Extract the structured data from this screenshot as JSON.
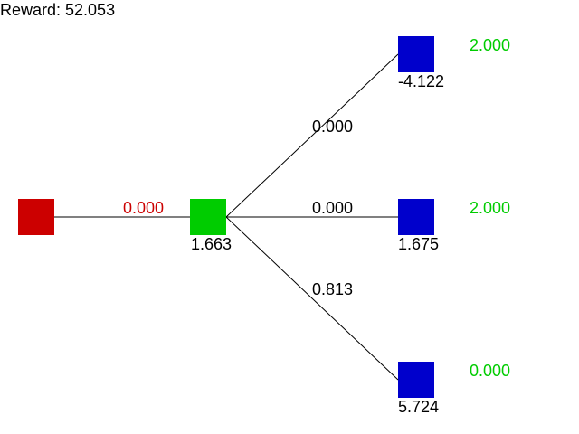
{
  "reward": {
    "label": "Reward: 52.053"
  },
  "colors": {
    "root": "#cc0000",
    "current": "#00cc00",
    "leaf": "#0000cc",
    "text": "#000000",
    "root_edge_label": "#cc0000",
    "leaf_value": "#00cc00",
    "edge": "#000000",
    "background": "#ffffff"
  },
  "root": {
    "edge_label": "0.000"
  },
  "current": {
    "value": "1.663"
  },
  "leaves": [
    {
      "edge_label": "0.000",
      "node_value": "-4.122",
      "outcome": "2.000"
    },
    {
      "edge_label": "0.000",
      "node_value": "1.675",
      "outcome": "2.000"
    },
    {
      "edge_label": "0.813",
      "node_value": "5.724",
      "outcome": "0.000"
    }
  ]
}
